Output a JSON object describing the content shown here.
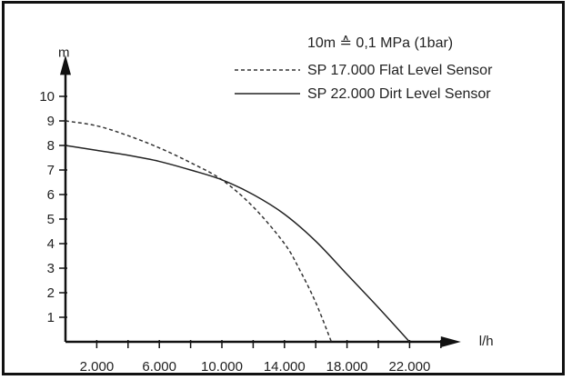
{
  "chart_data": {
    "type": "line",
    "title": "",
    "ylabel": "m",
    "xlabel": "l/h",
    "note": "10m ≙ 0,1 MPa (1bar)",
    "xlim": [
      0,
      24000
    ],
    "ylim": [
      0,
      10.8
    ],
    "x_ticks": [
      2000,
      4000,
      6000,
      8000,
      10000,
      12000,
      14000,
      16000,
      18000,
      20000,
      22000,
      24000
    ],
    "x_tick_labels": [
      {
        "value": 2000,
        "label": "2.000"
      },
      {
        "value": 6000,
        "label": "6.000"
      },
      {
        "value": 10000,
        "label": "10.000"
      },
      {
        "value": 14000,
        "label": "14.000"
      },
      {
        "value": 18000,
        "label": "18.000"
      },
      {
        "value": 22000,
        "label": "22.000"
      }
    ],
    "y_ticks": [
      1,
      2,
      3,
      4,
      5,
      6,
      7,
      8,
      9,
      10
    ],
    "y_tick_labels": [
      "1",
      "2",
      "3",
      "4",
      "5",
      "6",
      "7",
      "8",
      "9",
      "10"
    ],
    "legend_position": "top-right",
    "series": [
      {
        "name": "SP 17.000 Flat Level Sensor",
        "style": "dashed",
        "color": "#333333",
        "x": [
          0,
          2000,
          4000,
          6000,
          8000,
          10000,
          12000,
          14000,
          15000,
          16000,
          17000
        ],
        "y": [
          9.0,
          8.8,
          8.4,
          7.9,
          7.3,
          6.6,
          5.5,
          4.0,
          2.9,
          1.6,
          0.0
        ]
      },
      {
        "name": "SP 22.000 Dirt Level Sensor",
        "style": "solid",
        "color": "#222222",
        "x": [
          0,
          2000,
          4000,
          6000,
          8000,
          10000,
          12000,
          14000,
          16000,
          18000,
          20000,
          22000
        ],
        "y": [
          8.0,
          7.8,
          7.6,
          7.35,
          7.0,
          6.6,
          6.0,
          5.2,
          4.1,
          2.75,
          1.4,
          0.0
        ]
      }
    ]
  }
}
